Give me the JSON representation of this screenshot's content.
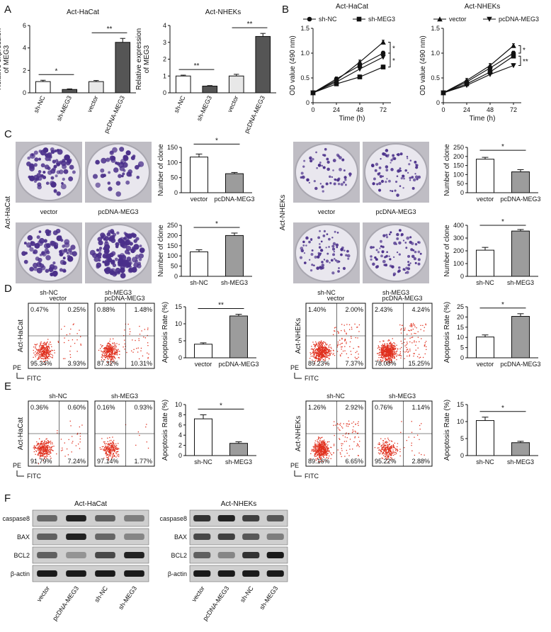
{
  "panel_letters": [
    "A",
    "B",
    "C",
    "D",
    "E",
    "F"
  ],
  "colors": {
    "ctrl_bar": "#ffffff",
    "treat_bar_A": "#555555",
    "treat_bar_C": "#9c9c9c",
    "dish_bg": "#e9e7ee",
    "colony": "#4a2f8a",
    "flow_dot": "#e0301e",
    "blot_band": "#1a1a1a",
    "blot_bg": "#cfcfcf"
  },
  "chart_data": [
    {
      "id": "A1",
      "type": "bar",
      "title": "Act-HaCat",
      "categories": [
        "sh-NC",
        "sh-MEG3",
        "vector",
        "pcDNA-MEG3"
      ],
      "values": [
        1.0,
        0.3,
        1.0,
        4.5
      ],
      "errors": [
        0.12,
        0.05,
        0.1,
        0.35
      ],
      "ylabel": [
        "Relative expression",
        "of MEG3"
      ],
      "ylim": [
        0,
        6
      ],
      "yticks": [
        0,
        2,
        4,
        6
      ],
      "sig": [
        {
          "a": 0,
          "b": 1,
          "text": "*"
        },
        {
          "a": 2,
          "b": 3,
          "text": "**"
        }
      ]
    },
    {
      "id": "A2",
      "type": "bar",
      "title": "Act-NHEKs",
      "categories": [
        "sh-NC",
        "sh-MEG3",
        "vector",
        "pcDNA-MEG3"
      ],
      "values": [
        1.0,
        0.4,
        1.0,
        3.35
      ],
      "errors": [
        0.05,
        0.03,
        0.1,
        0.18
      ],
      "ylabel": [
        "Relative expression",
        "of MEG3"
      ],
      "ylim": [
        0,
        4
      ],
      "yticks": [
        0,
        1,
        2,
        3,
        4
      ],
      "sig": [
        {
          "a": 0,
          "b": 1,
          "text": "**"
        },
        {
          "a": 2,
          "b": 3,
          "text": "**"
        }
      ]
    },
    {
      "id": "B1",
      "type": "line",
      "title": "Act-HaCat",
      "xlabel": "Time (h)",
      "ylabel": [
        "OD value (490 nm)"
      ],
      "x": [
        0,
        24,
        48,
        72
      ],
      "xlim": [
        0,
        80
      ],
      "ylim": [
        0,
        1.5
      ],
      "yticks": [
        0,
        0.5,
        1.0,
        1.5
      ],
      "ytick_labels": [
        "0",
        "0.5",
        "1.0",
        "1.5"
      ],
      "legend": [
        "sh-NC",
        "sh-MEG3"
      ],
      "series": [
        {
          "marker": "circle",
          "values": [
            0.2,
            0.48,
            0.75,
            1.0
          ]
        },
        {
          "marker": "square",
          "values": [
            0.2,
            0.38,
            0.52,
            0.72
          ]
        },
        {
          "marker": "up",
          "values": [
            0.2,
            0.45,
            0.82,
            1.22
          ]
        },
        {
          "marker": "down",
          "values": [
            0.2,
            0.42,
            0.68,
            0.92
          ]
        }
      ],
      "sig": [
        "*",
        "*"
      ]
    },
    {
      "id": "B2",
      "type": "line",
      "title": "Act-NHEKs",
      "xlabel": "Time (h)",
      "ylabel": [
        "OD value (490 nm)"
      ],
      "x": [
        0,
        24,
        48,
        72
      ],
      "xlim": [
        0,
        80
      ],
      "ylim": [
        0,
        1.5
      ],
      "yticks": [
        0,
        0.5,
        1.0,
        1.5
      ],
      "ytick_labels": [
        "0",
        "0.5",
        "1.0",
        "1.5"
      ],
      "legend": [
        "vector",
        "pcDNA-MEG3"
      ],
      "series": [
        {
          "marker": "up",
          "values": [
            0.2,
            0.45,
            0.75,
            1.15
          ]
        },
        {
          "marker": "down",
          "values": [
            0.2,
            0.35,
            0.57,
            0.75
          ]
        },
        {
          "marker": "circle",
          "values": [
            0.2,
            0.42,
            0.7,
            1.0
          ]
        },
        {
          "marker": "square",
          "values": [
            0.2,
            0.38,
            0.62,
            0.94
          ]
        }
      ],
      "sig": [
        "*",
        "**"
      ]
    },
    {
      "id": "C1",
      "type": "bar",
      "categories": [
        "vector",
        "pcDNA-MEG3"
      ],
      "values": [
        118,
        63
      ],
      "errors": [
        10,
        4
      ],
      "ylabel": [
        "Number of clone"
      ],
      "ylim": [
        0,
        150
      ],
      "yticks": [
        0,
        50,
        100,
        150
      ],
      "sig": [
        {
          "a": 0,
          "b": 1,
          "text": "*"
        }
      ]
    },
    {
      "id": "C2",
      "type": "bar",
      "categories": [
        "sh-NC",
        "sh-MEG3"
      ],
      "values": [
        120,
        200
      ],
      "errors": [
        10,
        12
      ],
      "ylabel": [
        "Number of clone"
      ],
      "ylim": [
        0,
        250
      ],
      "yticks": [
        0,
        50,
        100,
        150,
        200,
        250
      ],
      "sig": [
        {
          "a": 0,
          "b": 1,
          "text": "*"
        }
      ]
    },
    {
      "id": "C3",
      "type": "bar",
      "categories": [
        "vector",
        "pcDNA-MEG3"
      ],
      "values": [
        185,
        115
      ],
      "errors": [
        10,
        12
      ],
      "ylabel": [
        "Number of clone"
      ],
      "ylim": [
        0,
        250
      ],
      "yticks": [
        0,
        50,
        100,
        150,
        200,
        250
      ],
      "sig": [
        {
          "a": 0,
          "b": 1,
          "text": "*"
        }
      ]
    },
    {
      "id": "C4",
      "type": "bar",
      "categories": [
        "sh-NC",
        "sh-MEG3"
      ],
      "values": [
        205,
        355
      ],
      "errors": [
        22,
        12
      ],
      "ylabel": [
        "Number of clone"
      ],
      "ylim": [
        0,
        400
      ],
      "yticks": [
        0,
        100,
        200,
        300,
        400
      ],
      "sig": [
        {
          "a": 0,
          "b": 1,
          "text": "*"
        }
      ]
    },
    {
      "id": "D1",
      "type": "bar",
      "categories": [
        "vector",
        "pcDNA-MEG3"
      ],
      "values": [
        4,
        12.3
      ],
      "errors": [
        0.4,
        0.5
      ],
      "ylabel": [
        "Apoptosis Rate (%)"
      ],
      "ylim": [
        0,
        15
      ],
      "yticks": [
        0,
        5,
        10,
        15
      ],
      "sig": [
        {
          "a": 0,
          "b": 1,
          "text": "**"
        }
      ]
    },
    {
      "id": "D2",
      "type": "bar",
      "categories": [
        "vector",
        "pcDNA-MEG3"
      ],
      "values": [
        10.2,
        20.3
      ],
      "errors": [
        1.0,
        1.3
      ],
      "ylabel": [
        "Apoptosis Rate (%)"
      ],
      "ylim": [
        0,
        25
      ],
      "yticks": [
        0,
        5,
        10,
        15,
        20,
        25
      ],
      "sig": [
        {
          "a": 0,
          "b": 1,
          "text": "*"
        }
      ]
    },
    {
      "id": "E1",
      "type": "bar",
      "categories": [
        "sh-NC",
        "sh-MEG3"
      ],
      "values": [
        7.2,
        2.4
      ],
      "errors": [
        0.8,
        0.3
      ],
      "ylabel": [
        "Apoptosis Rate (%)"
      ],
      "ylim": [
        0,
        10
      ],
      "yticks": [
        0,
        2,
        4,
        6,
        8,
        10
      ],
      "sig": [
        {
          "a": 0,
          "b": 1,
          "text": "*"
        }
      ]
    },
    {
      "id": "E2",
      "type": "bar",
      "categories": [
        "sh-NC",
        "sh-MEG3"
      ],
      "values": [
        10.3,
        3.8
      ],
      "errors": [
        1.0,
        0.4
      ],
      "ylabel": [
        "Apoptosis Rate (%)"
      ],
      "ylim": [
        0,
        15
      ],
      "yticks": [
        0,
        5,
        10,
        15
      ],
      "sig": [
        {
          "a": 0,
          "b": 1,
          "text": "*"
        }
      ]
    }
  ],
  "colony": {
    "left_cell": "Act-HaCat",
    "right_cell": "Act-NHEKs",
    "rows": [
      {
        "labels": [
          "vector",
          "pcDNA-MEG3"
        ]
      },
      {
        "labels": [
          "sh-NC",
          "sh-MEG3"
        ]
      }
    ]
  },
  "flow": {
    "d_left": {
      "cell": "Act-HaCat",
      "plots": [
        {
          "label": "vector",
          "q": [
            "0.47%",
            "0.25%",
            "95.34%",
            "3.93%"
          ],
          "density": 0.5
        },
        {
          "label": "pcDNA-MEG3",
          "q": [
            "0.88%",
            "1.48%",
            "87.32%",
            "10.31%"
          ],
          "density": 0.55
        }
      ]
    },
    "d_right": {
      "cell": "Act-NHEKs",
      "plots": [
        {
          "label": "vector",
          "q": [
            "1.40%",
            "2.00%",
            "89.23%",
            "7.37%"
          ],
          "density": 0.8
        },
        {
          "label": "pcDNA-MEG3",
          "q": [
            "2.43%",
            "4.24%",
            "78.08%",
            "15.25%"
          ],
          "density": 1.0
        }
      ]
    },
    "e_left": {
      "cell": "Act-HaCat",
      "plots": [
        {
          "label": "sh-NC",
          "q": [
            "0.36%",
            "0.60%",
            "91.79%",
            "7.24%"
          ],
          "density": 0.5
        },
        {
          "label": "sh-MEG3",
          "q": [
            "0.16%",
            "0.93%",
            "97.14%",
            "1.77%"
          ],
          "density": 0.35
        }
      ]
    },
    "e_right": {
      "cell": "Act-NHEKs",
      "plots": [
        {
          "label": "sh-NC",
          "q": [
            "1.26%",
            "2.92%",
            "89.16%",
            "6.65%"
          ],
          "density": 0.8
        },
        {
          "label": "sh-MEG3",
          "q": [
            "0.76%",
            "1.14%",
            "95.22%",
            "2.88%"
          ],
          "density": 0.4
        }
      ]
    },
    "axis_y": "PE",
    "axis_x": "FITC"
  },
  "western": {
    "left": {
      "title": "Act-HaCat",
      "lanes": [
        "vector",
        "pcDNA-MEG3",
        "sh-NC",
        "sh-MEG3"
      ],
      "proteins": [
        "caspase8",
        "BAX",
        "BCL2",
        "β-actin"
      ],
      "intensity": [
        [
          0.5,
          0.95,
          0.55,
          0.35
        ],
        [
          0.55,
          0.95,
          0.5,
          0.3
        ],
        [
          0.55,
          0.2,
          0.7,
          0.95
        ],
        [
          1,
          1,
          1,
          1
        ]
      ]
    },
    "right": {
      "title": "Act-NHEKs",
      "lanes": [
        "vector",
        "pcDNA-MEG3",
        "sh-NC",
        "sh-MEG3"
      ],
      "proteins": [
        "caspase8",
        "BAX",
        "BCL2",
        "β-actin"
      ],
      "intensity": [
        [
          0.85,
          0.95,
          0.75,
          0.6
        ],
        [
          0.7,
          0.75,
          0.6,
          0.35
        ],
        [
          0.55,
          0.3,
          0.85,
          1.0
        ],
        [
          1,
          1,
          1,
          1
        ]
      ]
    }
  }
}
